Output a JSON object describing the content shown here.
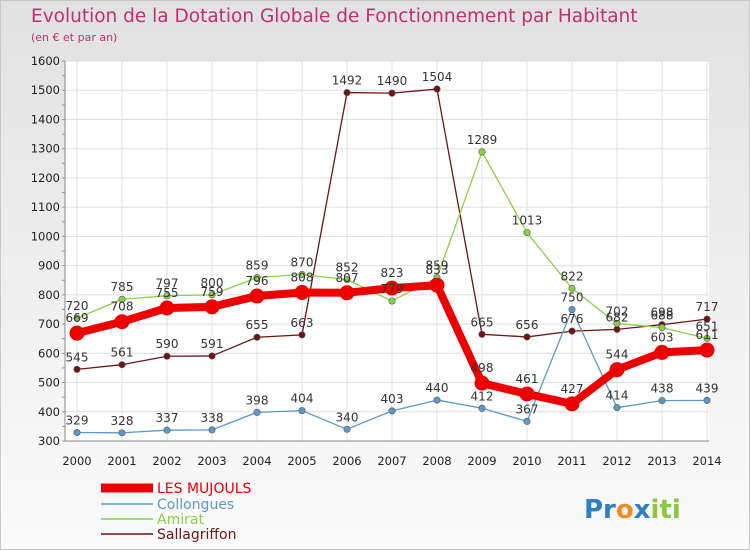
{
  "chart_data": {
    "type": "line",
    "title": "Evolution de la Dotation Globale de Fonctionnement par Habitant",
    "subtitle": "(en € et par an)",
    "x": [
      "2000",
      "2001",
      "2002",
      "2003",
      "2004",
      "2005",
      "2006",
      "2007",
      "2008",
      "2009",
      "2010",
      "2011",
      "2012",
      "2013",
      "2014"
    ],
    "ylim": [
      300,
      1600
    ],
    "yticks": [
      "300",
      "400",
      "500",
      "600",
      "700",
      "800",
      "900",
      "1000",
      "1100",
      "1200",
      "1300",
      "1400",
      "1500",
      "1600"
    ],
    "legend_position": "bottom-left",
    "series": [
      {
        "name": "LES MUJOULS",
        "color": "#ee0000",
        "values": [
          669,
          708,
          755,
          759,
          796,
          808,
          807,
          823,
          833,
          498,
          461,
          427,
          544,
          603,
          611
        ]
      },
      {
        "name": "Collongues",
        "color": "#5f97c6",
        "values": [
          329,
          328,
          337,
          338,
          398,
          404,
          340,
          403,
          440,
          412,
          367,
          750,
          414,
          438,
          439
        ]
      },
      {
        "name": "Amirat",
        "color": "#8ad048",
        "values": [
          720,
          785,
          797,
          800,
          859,
          870,
          852,
          779,
          859,
          1289,
          1013,
          822,
          702,
          688,
          651
        ]
      },
      {
        "name": "Sallagriffon",
        "color": "#6b1515",
        "values": [
          545,
          561,
          590,
          591,
          655,
          663,
          1492,
          1490,
          1504,
          665,
          656,
          676,
          682,
          698,
          717
        ]
      }
    ]
  },
  "brand": {
    "parts": [
      "Pr",
      "o",
      "x",
      "iti"
    ],
    "colors": [
      "#2f80c3",
      "#f28c1e",
      "#2f80c3",
      "#8cc63f"
    ]
  }
}
